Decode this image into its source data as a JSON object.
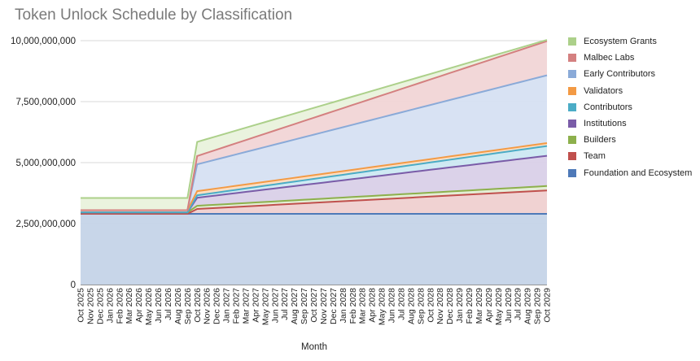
{
  "chart_data": {
    "type": "area",
    "stacked": true,
    "title": "Token Unlock Schedule by Classification",
    "xlabel": "Month",
    "ylabel": "",
    "ylim": [
      0,
      10000000000
    ],
    "yticks": [
      "0",
      "2,500,000,000",
      "5,000,000,000",
      "7,500,000,000",
      "10,000,000,000"
    ],
    "ytick_values": [
      0,
      2500000000,
      5000000000,
      7500000000,
      10000000000
    ],
    "grid": true,
    "legend_position": "right",
    "x": [
      "Oct 2025",
      "Nov 2025",
      "Dec 2025",
      "Jan 2026",
      "Feb 2026",
      "Mar 2026",
      "Apr 2026",
      "May 2026",
      "Jun 2026",
      "Jul 2026",
      "Aug 2026",
      "Sep 2026",
      "Oct 2026",
      "Nov 2026",
      "Dec 2026",
      "Jan 2027",
      "Feb 2027",
      "Mar 2027",
      "Apr 2027",
      "May 2027",
      "Jun 2027",
      "Jul 2027",
      "Aug 2027",
      "Sep 2027",
      "Oct 2027",
      "Nov 2027",
      "Dec 2027",
      "Jan 2028",
      "Feb 2028",
      "Mar 2028",
      "Apr 2028",
      "May 2028",
      "Jun 2028",
      "Jul 2028",
      "Aug 2028",
      "Sep 2028",
      "Oct 2028",
      "Nov 2028",
      "Dec 2028",
      "Jan 2029",
      "Feb 2029",
      "Mar 2029",
      "Apr 2029",
      "May 2029",
      "Jun 2029",
      "Jul 2029",
      "Aug 2029",
      "Sep 2029",
      "Oct 2029"
    ],
    "legend_order": [
      "Ecosystem Grants",
      "Malbec Labs",
      "Early Contributors",
      "Validators",
      "Contributors",
      "Institutions",
      "Builders",
      "Team",
      "Foundation and Ecosystem"
    ],
    "series": [
      {
        "name": "Foundation and Ecosystem",
        "color": "#4e79b8",
        "fill": "#c5d4e8",
        "start": 2900000000,
        "jump": 0,
        "end": 2900000000
      },
      {
        "name": "Team",
        "color": "#c0504d",
        "fill": "#efd0d0",
        "start": 0,
        "jump": 200000000,
        "end": 960000000
      },
      {
        "name": "Builders",
        "color": "#8db04c",
        "fill": "#e3ecd4",
        "start": 60000000,
        "jump": 70000000,
        "end": 180000000
      },
      {
        "name": "Institutions",
        "color": "#7a5ca8",
        "fill": "#d9d0e8",
        "start": 0,
        "jump": 330000000,
        "end": 1240000000
      },
      {
        "name": "Contributors",
        "color": "#4bacc6",
        "fill": "#cce9f2",
        "start": 0,
        "jump": 100000000,
        "end": 400000000
      },
      {
        "name": "Validators",
        "color": "#f39a44",
        "fill": "#fbdcc0",
        "start": 90000000,
        "jump": 80000000,
        "end": 120000000
      },
      {
        "name": "Early Contributors",
        "color": "#8aaad8",
        "fill": "#d6e0f2",
        "start": 0,
        "jump": 1100000000,
        "end": 2780000000
      },
      {
        "name": "Malbec Labs",
        "color": "#d48080",
        "fill": "#f1d5d6",
        "start": 0,
        "jump": 340000000,
        "end": 1400000000
      },
      {
        "name": "Ecosystem Grants",
        "color": "#acd08a",
        "fill": "#e9f2dc",
        "start": 500000000,
        "jump": 80000000,
        "end": 50000000
      }
    ]
  }
}
